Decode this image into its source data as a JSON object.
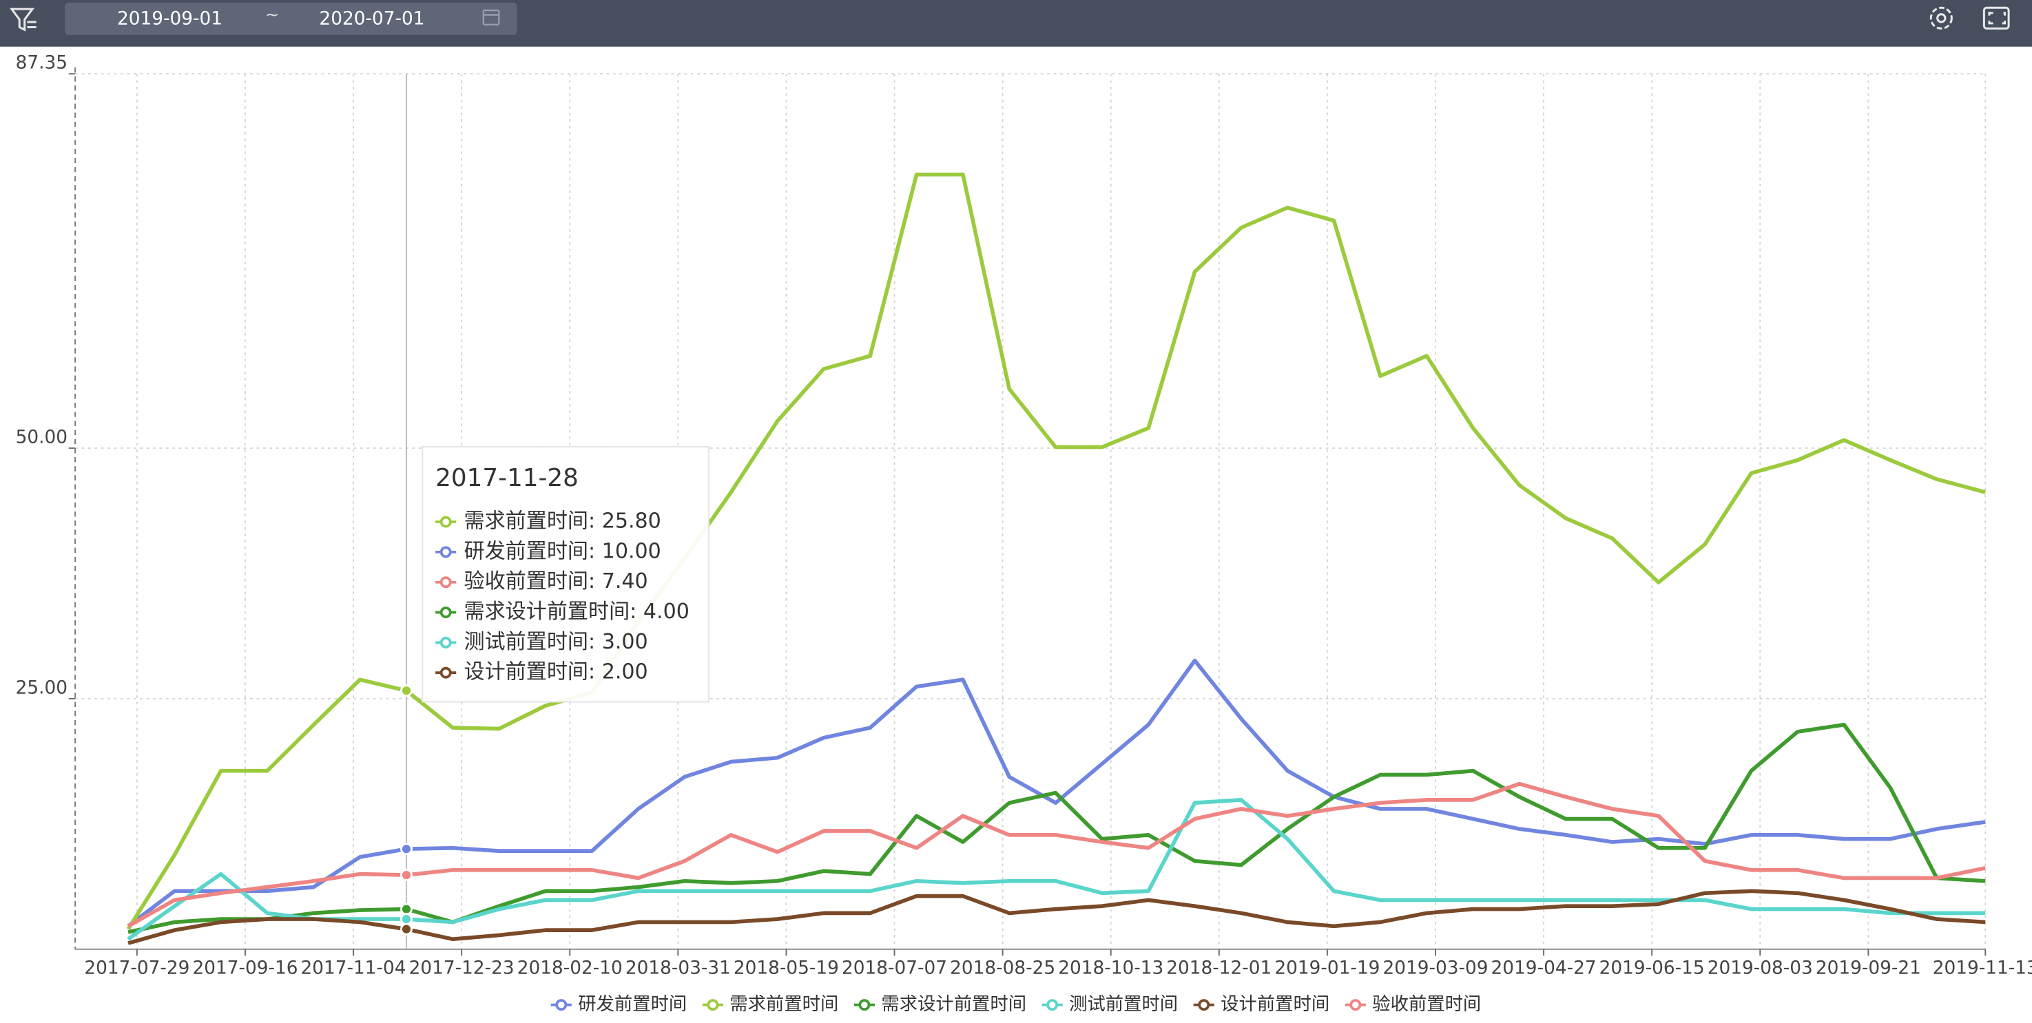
{
  "toolbar": {
    "date_start": "2019-09-01",
    "date_sep": "~",
    "date_end": "2020-07-01"
  },
  "chart_data": {
    "type": "line",
    "x": [
      "2017-07-25",
      "2017-08-15",
      "2017-09-05",
      "2017-09-26",
      "2017-10-17",
      "2017-11-07",
      "2017-11-28",
      "2017-12-19",
      "2018-01-09",
      "2018-01-30",
      "2018-02-20",
      "2018-03-13",
      "2018-04-03",
      "2018-04-24",
      "2018-05-15",
      "2018-06-05",
      "2018-06-26",
      "2018-07-17",
      "2018-08-07",
      "2018-08-28",
      "2018-09-18",
      "2018-10-09",
      "2018-10-30",
      "2018-11-20",
      "2018-12-11",
      "2019-01-01",
      "2019-01-22",
      "2019-02-12",
      "2019-03-05",
      "2019-03-26",
      "2019-04-16",
      "2019-05-07",
      "2019-05-28",
      "2019-06-18",
      "2019-07-09",
      "2019-07-30",
      "2019-08-20",
      "2019-09-10",
      "2019-10-01",
      "2019-10-22",
      "2019-11-13"
    ],
    "xlim": [
      "2017-07-01",
      "2019-11-13"
    ],
    "xticks": [
      "2017-07-29",
      "2017-09-16",
      "2017-11-04",
      "2017-12-23",
      "2018-02-10",
      "2018-03-31",
      "2018-05-19",
      "2018-07-07",
      "2018-08-25",
      "2018-10-13",
      "2018-12-01",
      "2019-01-19",
      "2019-03-09",
      "2019-04-27",
      "2019-06-15",
      "2019-08-03",
      "2019-09-21",
      "2019-11-13"
    ],
    "ylim": [
      0,
      87.35
    ],
    "yticks": [
      {
        "value": 25,
        "label": "25.00"
      },
      {
        "value": 50,
        "label": "50.00"
      },
      87.35
    ],
    "grid": true,
    "legend": "bottom",
    "series": [
      {
        "name": "研发前置时间",
        "color": "#7085e0",
        "values": [
          2.3,
          5.8,
          5.8,
          5.8,
          6.2,
          9.2,
          10,
          10.1,
          9.8,
          9.8,
          9.8,
          14,
          17.2,
          18.7,
          19.1,
          21.1,
          22.1,
          26.2,
          26.9,
          17.2,
          14.6,
          18.5,
          22.4,
          28.8,
          23,
          17.8,
          15.2,
          14,
          14,
          13,
          12,
          11.4,
          10.7,
          11,
          10.5,
          11.4,
          11.4,
          11,
          11,
          12,
          12.7
        ]
      },
      {
        "name": "需求前置时间",
        "color": "#9bcb3d",
        "values": [
          2,
          9.4,
          17.8,
          17.8,
          22.4,
          26.9,
          25.8,
          22.1,
          22,
          24.3,
          25.6,
          32.7,
          39,
          45.6,
          52.7,
          57.9,
          59.2,
          77.3,
          77.3,
          55.9,
          50.1,
          50.1,
          52,
          67.6,
          72,
          74,
          72.7,
          57.2,
          59.2,
          52,
          46.3,
          43,
          41,
          36.6,
          40.4,
          47.5,
          48.8,
          50.8,
          48.8,
          46.9,
          45.6
        ]
      },
      {
        "name": "需求设计前置时间",
        "color": "#3f9b2e",
        "values": [
          1.7,
          2.7,
          3,
          3,
          3.6,
          3.9,
          4,
          2.7,
          4.3,
          5.8,
          5.8,
          6.2,
          6.8,
          6.6,
          6.8,
          7.8,
          7.5,
          13.3,
          10.7,
          14.6,
          15.6,
          11,
          11.4,
          8.8,
          8.4,
          12,
          15.2,
          17.4,
          17.4,
          17.8,
          15.2,
          13,
          13,
          10.1,
          10.1,
          17.8,
          21.7,
          22.4,
          16.1,
          7.1,
          6.8
        ]
      },
      {
        "name": "测试前置时间",
        "color": "#5ad5cb",
        "values": [
          1,
          4.3,
          7.5,
          3.6,
          3,
          3,
          3,
          2.7,
          4,
          4.9,
          4.9,
          5.8,
          5.8,
          5.8,
          5.8,
          5.8,
          5.8,
          6.8,
          6.6,
          6.8,
          6.8,
          5.6,
          5.8,
          14.6,
          14.9,
          11,
          5.8,
          4.9,
          4.9,
          4.9,
          4.9,
          4.9,
          4.9,
          4.9,
          4.9,
          4,
          4,
          4,
          3.6,
          3.6,
          3.6
        ]
      },
      {
        "name": "设计前置时间",
        "color": "#7a4a28",
        "values": [
          0.6,
          1.9,
          2.7,
          3,
          3,
          2.7,
          2,
          1,
          1.4,
          1.9,
          1.9,
          2.7,
          2.7,
          2.7,
          3,
          3.6,
          3.6,
          5.3,
          5.3,
          3.6,
          4,
          4.3,
          4.9,
          4.3,
          3.6,
          2.7,
          2.3,
          2.7,
          3.6,
          4,
          4,
          4.3,
          4.3,
          4.5,
          5.6,
          5.8,
          5.6,
          4.9,
          4,
          3,
          2.7
        ]
      },
      {
        "name": "验收前置时间",
        "color": "#ee8583",
        "values": [
          2.3,
          4.9,
          5.6,
          6.2,
          6.8,
          7.5,
          7.4,
          7.9,
          7.9,
          7.9,
          7.9,
          7.1,
          8.8,
          11.4,
          9.7,
          11.8,
          11.8,
          10.1,
          13.3,
          11.4,
          11.4,
          10.7,
          10.1,
          13,
          14,
          13.3,
          14,
          14.6,
          14.9,
          14.9,
          16.5,
          15.2,
          14,
          13.3,
          8.8,
          7.9,
          7.9,
          7.1,
          7.1,
          7.1,
          8.1
        ]
      }
    ],
    "tooltip": {
      "title": "2017-11-28",
      "items": [
        {
          "text": "需求前置时间: 25.80",
          "color": "#9bcb3d"
        },
        {
          "text": "研发前置时间: 10.00",
          "color": "#7085e0"
        },
        {
          "text": "验收前置时间: 7.40",
          "color": "#ee8583"
        },
        {
          "text": "需求设计前置时间: 4.00",
          "color": "#3f9b2e"
        },
        {
          "text": "测试前置时间: 3.00",
          "color": "#5ad5cb"
        },
        {
          "text": "设计前置时间: 2.00",
          "color": "#7a4a28"
        }
      ]
    }
  }
}
